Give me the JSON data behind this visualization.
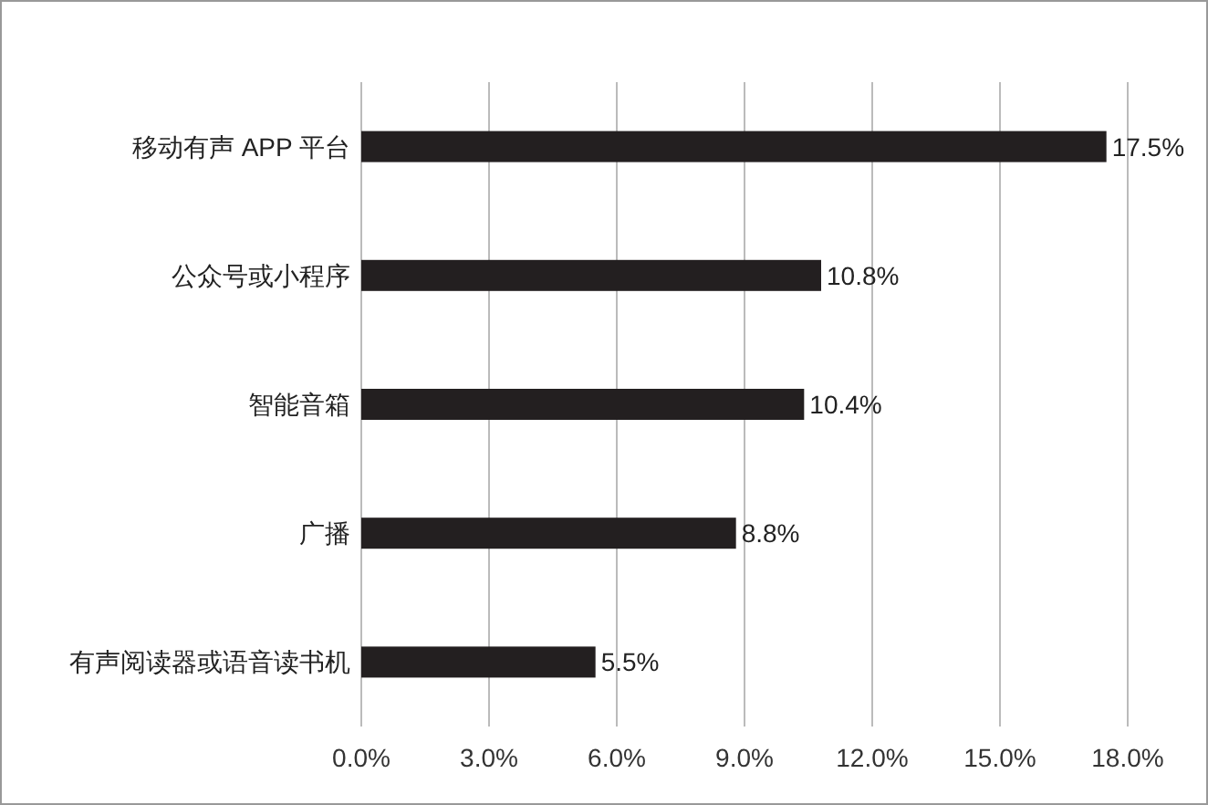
{
  "chart_data": {
    "type": "bar",
    "orientation": "horizontal",
    "categories": [
      "移动有声 APP 平台",
      "公众号或小程序",
      "智能音箱",
      "广播",
      "有声阅读器或语音读书机"
    ],
    "values": [
      17.5,
      10.8,
      10.4,
      8.8,
      5.5
    ],
    "value_labels": [
      "17.5%",
      "10.8%",
      "10.4%",
      "8.8%",
      "5.5%"
    ],
    "color": "#231f20",
    "xlim": [
      0,
      18
    ],
    "xticks": [
      {
        "value": 0,
        "label": "0.0%"
      },
      {
        "value": 3,
        "label": "3.0%"
      },
      {
        "value": 6,
        "label": "6.0%"
      },
      {
        "value": 9,
        "label": "9.0%"
      },
      {
        "value": 12,
        "label": "12.0%"
      },
      {
        "value": 15,
        "label": "15.0%"
      },
      {
        "value": 18,
        "label": "18.0%"
      }
    ],
    "grid": "x"
  }
}
